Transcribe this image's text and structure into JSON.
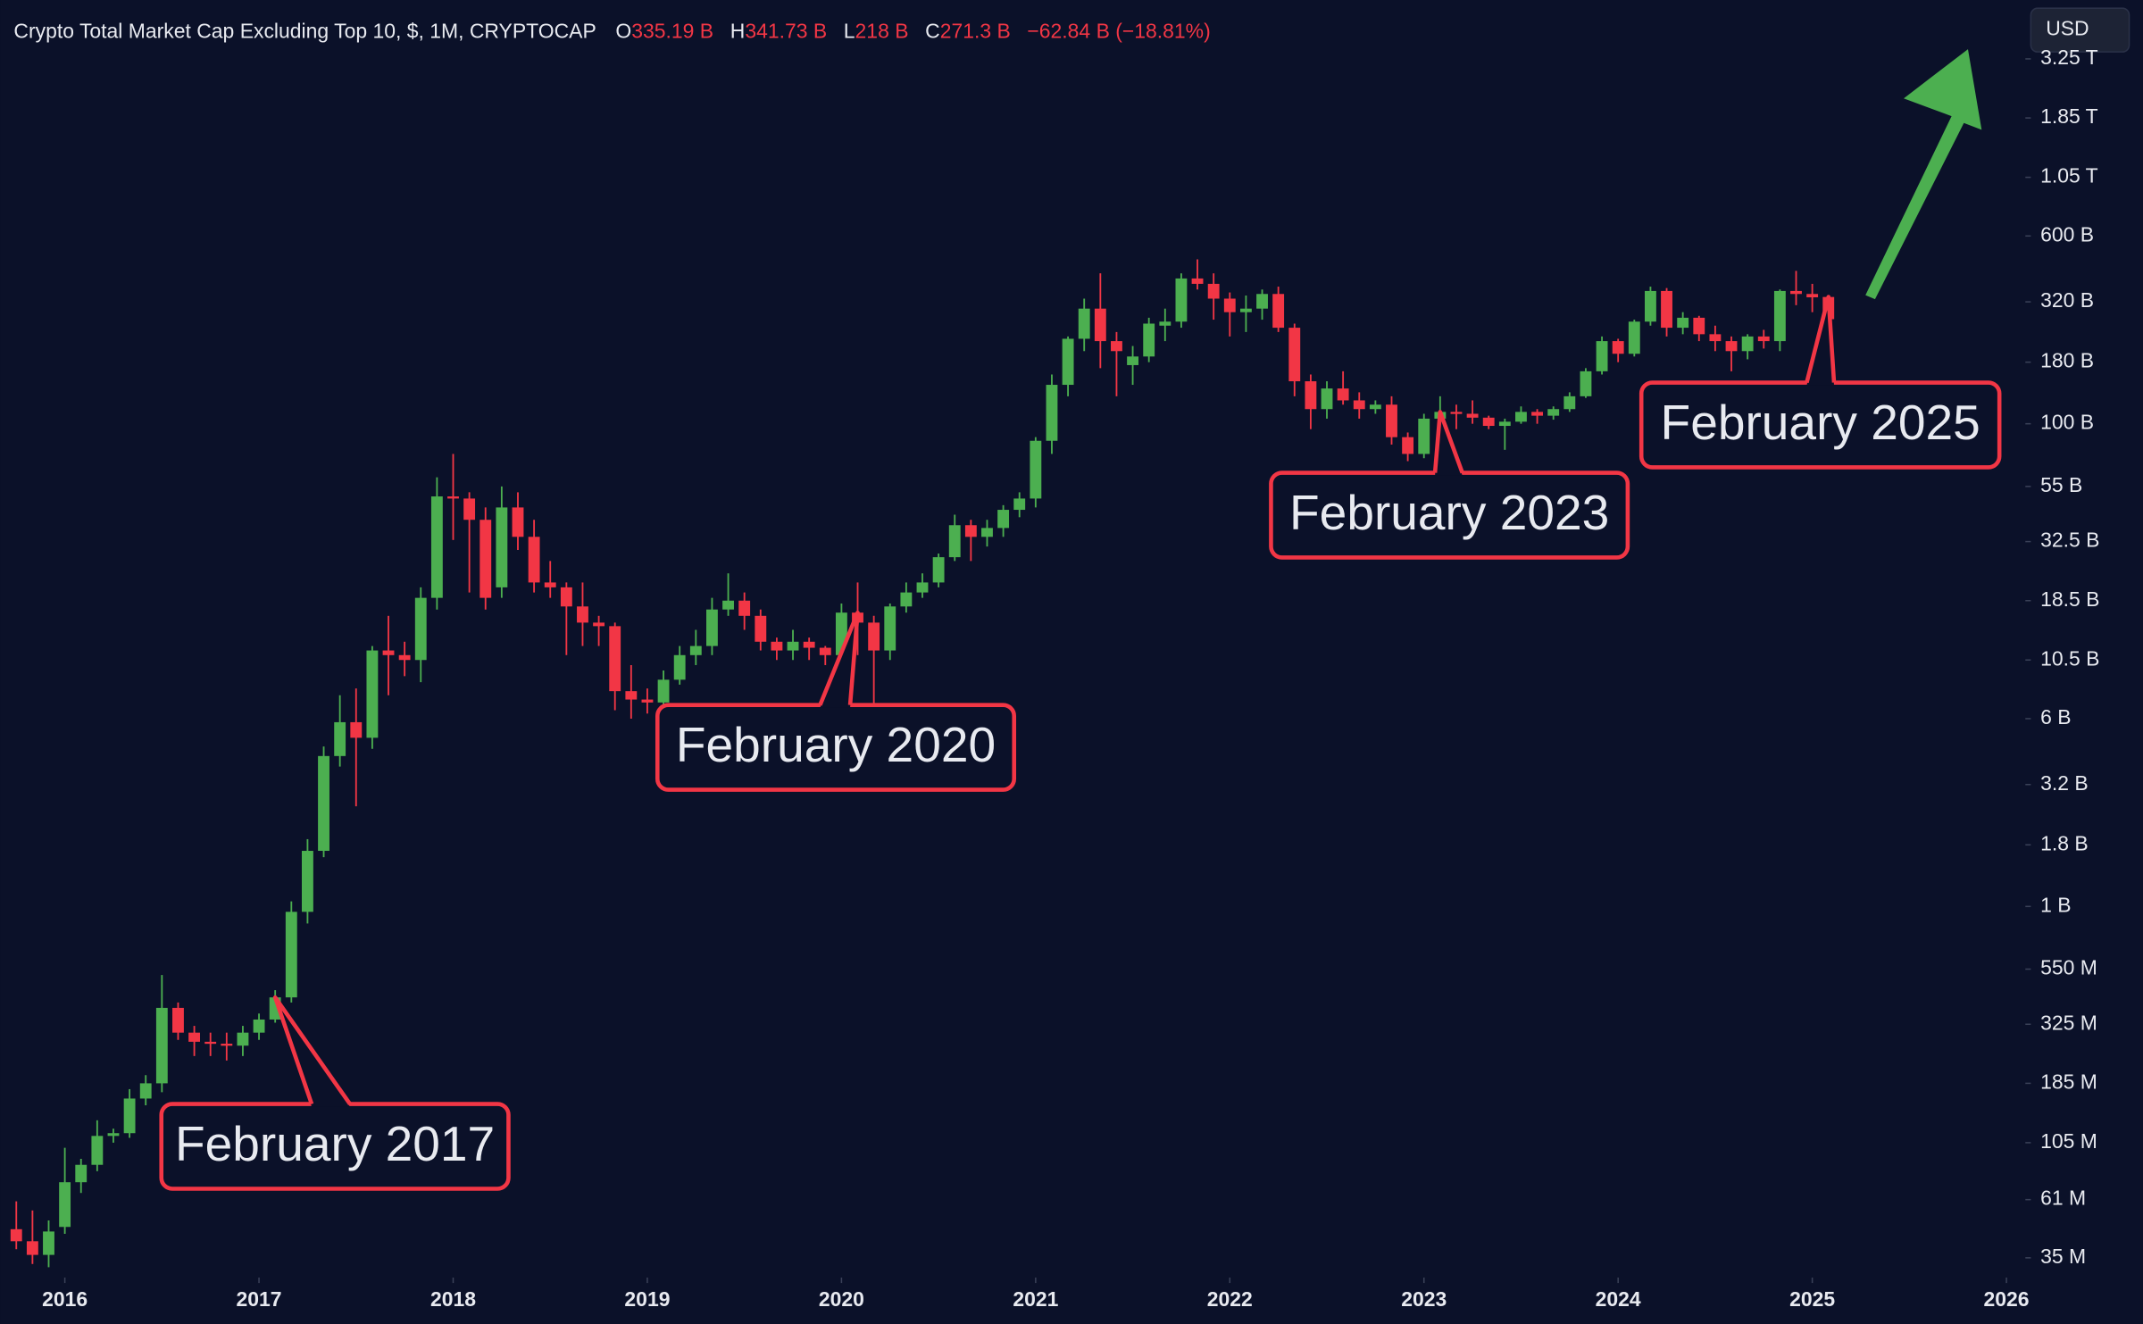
{
  "chart_data": {
    "type": "candlestick",
    "title": "Crypto Total Market Cap Excluding Top 10, $, 1M, CRYPTOCAP",
    "currency": "USD",
    "log_y": true,
    "grid": false,
    "up_color": "#4caf50",
    "down_color": "#f23645",
    "header": {
      "letters": [
        "O",
        "H",
        "L",
        "C"
      ],
      "value_labels": [
        "335.19 B",
        "341.73 B",
        "218 B",
        "271.3 B"
      ],
      "change_label": "−62.84 B (−18.81%)"
    },
    "x": [
      "2015-10",
      "2015-11",
      "2015-12",
      "2016-01",
      "2016-02",
      "2016-03",
      "2016-04",
      "2016-05",
      "2016-06",
      "2016-07",
      "2016-08",
      "2016-09",
      "2016-10",
      "2016-11",
      "2016-12",
      "2017-01",
      "2017-02",
      "2017-03",
      "2017-04",
      "2017-05",
      "2017-06",
      "2017-07",
      "2017-08",
      "2017-09",
      "2017-10",
      "2017-11",
      "2017-12",
      "2018-01",
      "2018-02",
      "2018-03",
      "2018-04",
      "2018-05",
      "2018-06",
      "2018-07",
      "2018-08",
      "2018-09",
      "2018-10",
      "2018-11",
      "2018-12",
      "2019-01",
      "2019-02",
      "2019-03",
      "2019-04",
      "2019-05",
      "2019-06",
      "2019-07",
      "2019-08",
      "2019-09",
      "2019-10",
      "2019-11",
      "2019-12",
      "2020-01",
      "2020-02",
      "2020-03",
      "2020-04",
      "2020-05",
      "2020-06",
      "2020-07",
      "2020-08",
      "2020-09",
      "2020-10",
      "2020-11",
      "2020-12",
      "2021-01",
      "2021-02",
      "2021-03",
      "2021-04",
      "2021-05",
      "2021-06",
      "2021-07",
      "2021-08",
      "2021-09",
      "2021-10",
      "2021-11",
      "2021-12",
      "2022-01",
      "2022-02",
      "2022-03",
      "2022-04",
      "2022-05",
      "2022-06",
      "2022-07",
      "2022-08",
      "2022-09",
      "2022-10",
      "2022-11",
      "2022-12",
      "2023-01",
      "2023-02",
      "2023-03",
      "2023-04",
      "2023-05",
      "2023-06",
      "2023-07",
      "2023-08",
      "2023-09",
      "2023-10",
      "2023-11",
      "2023-12",
      "2024-01",
      "2024-02",
      "2024-03",
      "2024-04",
      "2024-05",
      "2024-06",
      "2024-07",
      "2024-08",
      "2024-09",
      "2024-10",
      "2024-11",
      "2024-12",
      "2025-01",
      "2025-02"
    ],
    "open": [
      46000000.0,
      41000000.0,
      36000000.0,
      47000000.0,
      72000000.0,
      85000000.0,
      112000000.0,
      115000000.0,
      160000000.0,
      185000000.0,
      380000000.0,
      300000000.0,
      275000000.0,
      270000000.0,
      265000000.0,
      300000000.0,
      340000000.0,
      420000000.0,
      950000000.0,
      1700000000.0,
      4200000000.0,
      5800000000.0,
      5000000000.0,
      11500000000.0,
      11000000000.0,
      10500000000.0,
      19000000000.0,
      50000000000.0,
      49000000000.0,
      40000000000.0,
      21000000000.0,
      45000000000.0,
      34000000000.0,
      22000000000.0,
      21000000000.0,
      17500000000.0,
      15000000000.0,
      14500000000.0,
      7800000000.0,
      7200000000.0,
      7000000000.0,
      8700000000.0,
      11000000000.0,
      12000000000.0,
      17000000000.0,
      18500000000.0,
      16000000000.0,
      12500000000.0,
      11500000000.0,
      12500000000.0,
      11800000000.0,
      11000000000.0,
      16500000000.0,
      15000000000.0,
      11500000000.0,
      17500000000.0,
      20000000000.0,
      22000000000.0,
      28000000000.0,
      38000000000.0,
      34000000000.0,
      37000000000.0,
      44000000000.0,
      49000000000.0,
      85000000000.0,
      145000000000.0,
      225000000000.0,
      300000000000.0,
      220000000000.0,
      175000000000.0,
      190000000000.0,
      255000000000.0,
      265000000000.0,
      400000000000.0,
      380000000000.0,
      330000000000.0,
      290000000000.0,
      300000000000.0,
      345000000000.0,
      250000000000.0,
      150000000000.0,
      115000000000.0,
      140000000000.0,
      125000000000.0,
      115000000000.0,
      120000000000.0,
      88000000000.0,
      75000000000.0,
      105000000000.0,
      112000000000.0,
      110000000000.0,
      106000000000.0,
      98000000000.0,
      102000000000.0,
      112000000000.0,
      108000000000.0,
      115000000000.0,
      130000000000.0,
      165000000000.0,
      220000000000.0,
      195000000000.0,
      265000000000.0,
      355000000000.0,
      250000000000.0,
      275000000000.0,
      235000000000.0,
      220000000000.0,
      200000000000.0,
      230000000000.0,
      220000000000.0,
      355000000000.0,
      345000000000.0,
      335190000000.0
    ],
    "high": [
      60000000.0,
      55000000.0,
      50000000.0,
      100000000.0,
      90000000.0,
      130000000.0,
      120000000.0,
      175000000.0,
      200000000.0,
      520000000.0,
      400000000.0,
      320000000.0,
      300000000.0,
      300000000.0,
      320000000.0,
      360000000.0,
      450000000.0,
      1050000000.0,
      1900000000.0,
      4600000000.0,
      7500000000.0,
      8000000000.0,
      12000000000.0,
      16000000000.0,
      12500000000.0,
      21000000000.0,
      60000000000.0,
      75000000000.0,
      52000000000.0,
      45000000000.0,
      55000000000.0,
      52000000000.0,
      40000000000.0,
      27000000000.0,
      22000000000.0,
      22000000000.0,
      16000000000.0,
      15000000000.0,
      10000000000.0,
      8000000000.0,
      9500000000.0,
      12000000000.0,
      14000000000.0,
      19000000000.0,
      24000000000.0,
      20000000000.0,
      17000000000.0,
      13000000000.0,
      14000000000.0,
      13000000000.0,
      12000000000.0,
      18000000000.0,
      22000000000.0,
      16000000000.0,
      18000000000.0,
      22000000000.0,
      24000000000.0,
      29000000000.0,
      42000000000.0,
      40000000000.0,
      40000000000.0,
      46000000000.0,
      52000000000.0,
      88000000000.0,
      160000000000.0,
      230000000000.0,
      330000000000.0,
      420000000000.0,
      240000000000.0,
      210000000000.0,
      275000000000.0,
      300000000000.0,
      420000000000.0,
      480000000000.0,
      420000000000.0,
      350000000000.0,
      340000000000.0,
      360000000000.0,
      370000000000.0,
      260000000000.0,
      160000000000.0,
      150000000000.0,
      165000000000.0,
      135000000000.0,
      125000000000.0,
      130000000000.0,
      92000000000.0,
      110000000000.0,
      130000000000.0,
      120000000000.0,
      125000000000.0,
      108000000000.0,
      105000000000.0,
      118000000000.0,
      115000000000.0,
      118000000000.0,
      135000000000.0,
      170000000000.0,
      230000000000.0,
      225000000000.0,
      270000000000.0,
      370000000000.0,
      365000000000.0,
      290000000000.0,
      280000000000.0,
      255000000000.0,
      230000000000.0,
      235000000000.0,
      245000000000.0,
      360000000000.0,
      430000000000.0,
      380000000000.0,
      341730000000.0
    ],
    "low": [
      38000000.0,
      33000000.0,
      32000000.0,
      44000000.0,
      65000000.0,
      80000000.0,
      105000000.0,
      110000000.0,
      150000000.0,
      170000000.0,
      280000000.0,
      240000000.0,
      240000000.0,
      230000000.0,
      240000000.0,
      280000000.0,
      330000000.0,
      400000000.0,
      850000000.0,
      1600000000.0,
      3800000000.0,
      2600000000.0,
      4500000000.0,
      7500000000.0,
      9000000000.0,
      8500000000.0,
      17000000000.0,
      33000000000.0,
      20000000000.0,
      17000000000.0,
      19000000000.0,
      30000000000.0,
      20000000000.0,
      19000000000.0,
      11000000000.0,
      12000000000.0,
      12000000000.0,
      6500000000.0,
      6000000000.0,
      6300000000.0,
      6500000000.0,
      8300000000.0,
      10000000000.0,
      11000000000.0,
      16000000000.0,
      14000000000.0,
      11500000000.0,
      10500000000.0,
      10500000000.0,
      10500000000.0,
      10000000000.0,
      10500000000.0,
      11000000000.0,
      6500000000.0,
      10500000000.0,
      16500000000.0,
      19000000000.0,
      21000000000.0,
      27000000000.0,
      27000000000.0,
      31000000000.0,
      34000000000.0,
      41000000000.0,
      45000000000.0,
      75000000000.0,
      130000000000.0,
      200000000000.0,
      170000000000.0,
      130000000000.0,
      145000000000.0,
      180000000000.0,
      220000000000.0,
      250000000000.0,
      360000000000.0,
      270000000000.0,
      230000000000.0,
      240000000000.0,
      270000000000.0,
      240000000000.0,
      130000000000.0,
      95000000000.0,
      105000000000.0,
      120000000000.0,
      105000000000.0,
      110000000000.0,
      82000000000.0,
      70000000000.0,
      72000000000.0,
      100000000000.0,
      95000000000.0,
      100000000000.0,
      95000000000.0,
      78000000000.0,
      100000000000.0,
      100000000000.0,
      104000000000.0,
      112000000000.0,
      128000000000.0,
      160000000000.0,
      180000000000.0,
      190000000000.0,
      255000000000.0,
      230000000000.0,
      235000000000.0,
      220000000000.0,
      200000000000.0,
      165000000000.0,
      185000000000.0,
      205000000000.0,
      200000000000.0,
      310000000000.0,
      290000000000.0,
      218000000000.0
    ],
    "close": [
      41000000.0,
      36000000.0,
      45000000.0,
      72000000.0,
      85000000.0,
      112000000.0,
      115000000.0,
      160000000.0,
      185000000.0,
      380000000.0,
      300000000.0,
      275000000.0,
      270000000.0,
      265000000.0,
      300000000.0,
      340000000.0,
      420000000.0,
      950000000.0,
      1700000000.0,
      4200000000.0,
      5800000000.0,
      5000000000.0,
      11500000000.0,
      11000000000.0,
      10500000000.0,
      19000000000.0,
      50000000000.0,
      49000000000.0,
      40000000000.0,
      19000000000.0,
      45000000000.0,
      34000000000.0,
      22000000000.0,
      21000000000.0,
      17500000000.0,
      15000000000.0,
      14500000000.0,
      7800000000.0,
      7200000000.0,
      7000000000.0,
      8700000000.0,
      11000000000.0,
      12000000000.0,
      17000000000.0,
      18500000000.0,
      16000000000.0,
      12500000000.0,
      11500000000.0,
      12500000000.0,
      11800000000.0,
      11000000000.0,
      16500000000.0,
      15000000000.0,
      11500000000.0,
      17500000000.0,
      20000000000.0,
      22000000000.0,
      28000000000.0,
      38000000000.0,
      34000000000.0,
      37000000000.0,
      44000000000.0,
      49000000000.0,
      85000000000.0,
      145000000000.0,
      225000000000.0,
      300000000000.0,
      220000000000.0,
      200000000000.0,
      190000000000.0,
      260000000000.0,
      265000000000.0,
      400000000000.0,
      380000000000.0,
      330000000000.0,
      290000000000.0,
      300000000000.0,
      345000000000.0,
      250000000000.0,
      150000000000.0,
      115000000000.0,
      140000000000.0,
      125000000000.0,
      115000000000.0,
      120000000000.0,
      88000000000.0,
      75000000000.0,
      105000000000.0,
      112000000000.0,
      110000000000.0,
      106000000000.0,
      98000000000.0,
      102000000000.0,
      112000000000.0,
      108000000000.0,
      115000000000.0,
      130000000000.0,
      165000000000.0,
      220000000000.0,
      195000000000.0,
      265000000000.0,
      355000000000.0,
      250000000000.0,
      275000000000.0,
      235000000000.0,
      220000000000.0,
      200000000000.0,
      230000000000.0,
      220000000000.0,
      355000000000.0,
      345000000000.0,
      334140000000.0,
      271300000000.0
    ],
    "xlim": [
      "2015-09",
      "2026-02"
    ],
    "xticks": [
      {
        "value": "2016-01",
        "label": "2016"
      },
      {
        "value": "2017-01",
        "label": "2017"
      },
      {
        "value": "2018-01",
        "label": "2018"
      },
      {
        "value": "2019-01",
        "label": "2019"
      },
      {
        "value": "2020-01",
        "label": "2020"
      },
      {
        "value": "2021-01",
        "label": "2021"
      },
      {
        "value": "2022-01",
        "label": "2022"
      },
      {
        "value": "2023-01",
        "label": "2023"
      },
      {
        "value": "2024-01",
        "label": "2024"
      },
      {
        "value": "2025-01",
        "label": "2025"
      },
      {
        "value": "2026-01",
        "label": "2026"
      }
    ],
    "ylim": [
      29000000.0,
      5700000000000.0
    ],
    "yticks": [
      {
        "value": 3250000000000.0,
        "label": "3.25 T"
      },
      {
        "value": 1850000000000.0,
        "label": "1.85 T"
      },
      {
        "value": 1050000000000.0,
        "label": "1.05 T"
      },
      {
        "value": 600000000000.0,
        "label": "600 B"
      },
      {
        "value": 320000000000.0,
        "label": "320 B"
      },
      {
        "value": 180000000000.0,
        "label": "180 B"
      },
      {
        "value": 100000000000.0,
        "label": "100 B"
      },
      {
        "value": 55000000000.0,
        "label": "55 B"
      },
      {
        "value": 32500000000.0,
        "label": "32.5 B"
      },
      {
        "value": 18500000000.0,
        "label": "18.5 B"
      },
      {
        "value": 10500000000.0,
        "label": "10.5 B"
      },
      {
        "value": 6000000000.0,
        "label": "6 B"
      },
      {
        "value": 3200000000.0,
        "label": "3.2 B"
      },
      {
        "value": 1800000000.0,
        "label": "1.8 B"
      },
      {
        "value": 1000000000.0,
        "label": "1 B"
      },
      {
        "value": 550000000.0,
        "label": "550 M"
      },
      {
        "value": 325000000.0,
        "label": "325 M"
      },
      {
        "value": 185000000.0,
        "label": "185 M"
      },
      {
        "value": 105000000.0,
        "label": "105 M"
      },
      {
        "value": 61000000.0,
        "label": "61 M"
      },
      {
        "value": 35000000.0,
        "label": "35 M"
      }
    ],
    "annotations": [
      {
        "text": "February 2017",
        "x": "2017-02"
      },
      {
        "text": "February 2020",
        "x": "2020-02"
      },
      {
        "text": "February 2023",
        "x": "2023-02"
      },
      {
        "text": "February 2025",
        "x": "2025-02"
      }
    ]
  }
}
